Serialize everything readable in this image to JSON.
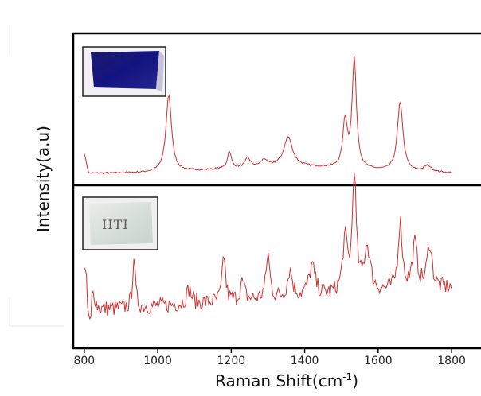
{
  "chart_data": {
    "type": "line",
    "xlabel": "Raman Shift(cm",
    "xlabel_unit_sup": "-1",
    "xlabel_close": ")",
    "ylabel": "Intensity(a.u)",
    "xlim": [
      770,
      1880
    ],
    "x_ticks": [
      800,
      1000,
      1200,
      1400,
      1600,
      1800
    ],
    "tick_labels": [
      "800",
      "1000",
      "1200",
      "1400",
      "1600",
      "1800"
    ],
    "line_color": "#d03030",
    "panels": [
      {
        "inset_label": "",
        "inset_description": "dark blue stained sample photo",
        "baseline": 0.06,
        "peaks": [
          {
            "x": 1030,
            "h": 0.58,
            "w": 9
          },
          {
            "x": 1195,
            "h": 0.13,
            "w": 6
          },
          {
            "x": 1245,
            "h": 0.07,
            "w": 8
          },
          {
            "x": 1290,
            "h": 0.05,
            "w": 10
          },
          {
            "x": 1355,
            "h": 0.22,
            "w": 14
          },
          {
            "x": 1510,
            "h": 0.35,
            "w": 7
          },
          {
            "x": 1535,
            "h": 0.82,
            "w": 7
          },
          {
            "x": 1660,
            "h": 0.52,
            "w": 9
          },
          {
            "x": 1735,
            "h": 0.05,
            "w": 12
          }
        ]
      },
      {
        "inset_label": "IITI",
        "inset_description": "clear sample photo",
        "baseline": 0.22,
        "peaks": [
          {
            "x": 825,
            "h": 0.12,
            "w": 6
          },
          {
            "x": 935,
            "h": 0.35,
            "w": 4
          },
          {
            "x": 1085,
            "h": 0.1,
            "w": 8
          },
          {
            "x": 1180,
            "h": 0.32,
            "w": 5
          },
          {
            "x": 1230,
            "h": 0.12,
            "w": 7
          },
          {
            "x": 1300,
            "h": 0.3,
            "w": 6
          },
          {
            "x": 1360,
            "h": 0.18,
            "w": 8
          },
          {
            "x": 1420,
            "h": 0.2,
            "w": 10
          },
          {
            "x": 1510,
            "h": 0.35,
            "w": 8
          },
          {
            "x": 1535,
            "h": 0.8,
            "w": 6
          },
          {
            "x": 1570,
            "h": 0.3,
            "w": 10
          },
          {
            "x": 1660,
            "h": 0.45,
            "w": 7
          },
          {
            "x": 1700,
            "h": 0.3,
            "w": 8
          },
          {
            "x": 1740,
            "h": 0.3,
            "w": 8
          }
        ]
      }
    ]
  }
}
